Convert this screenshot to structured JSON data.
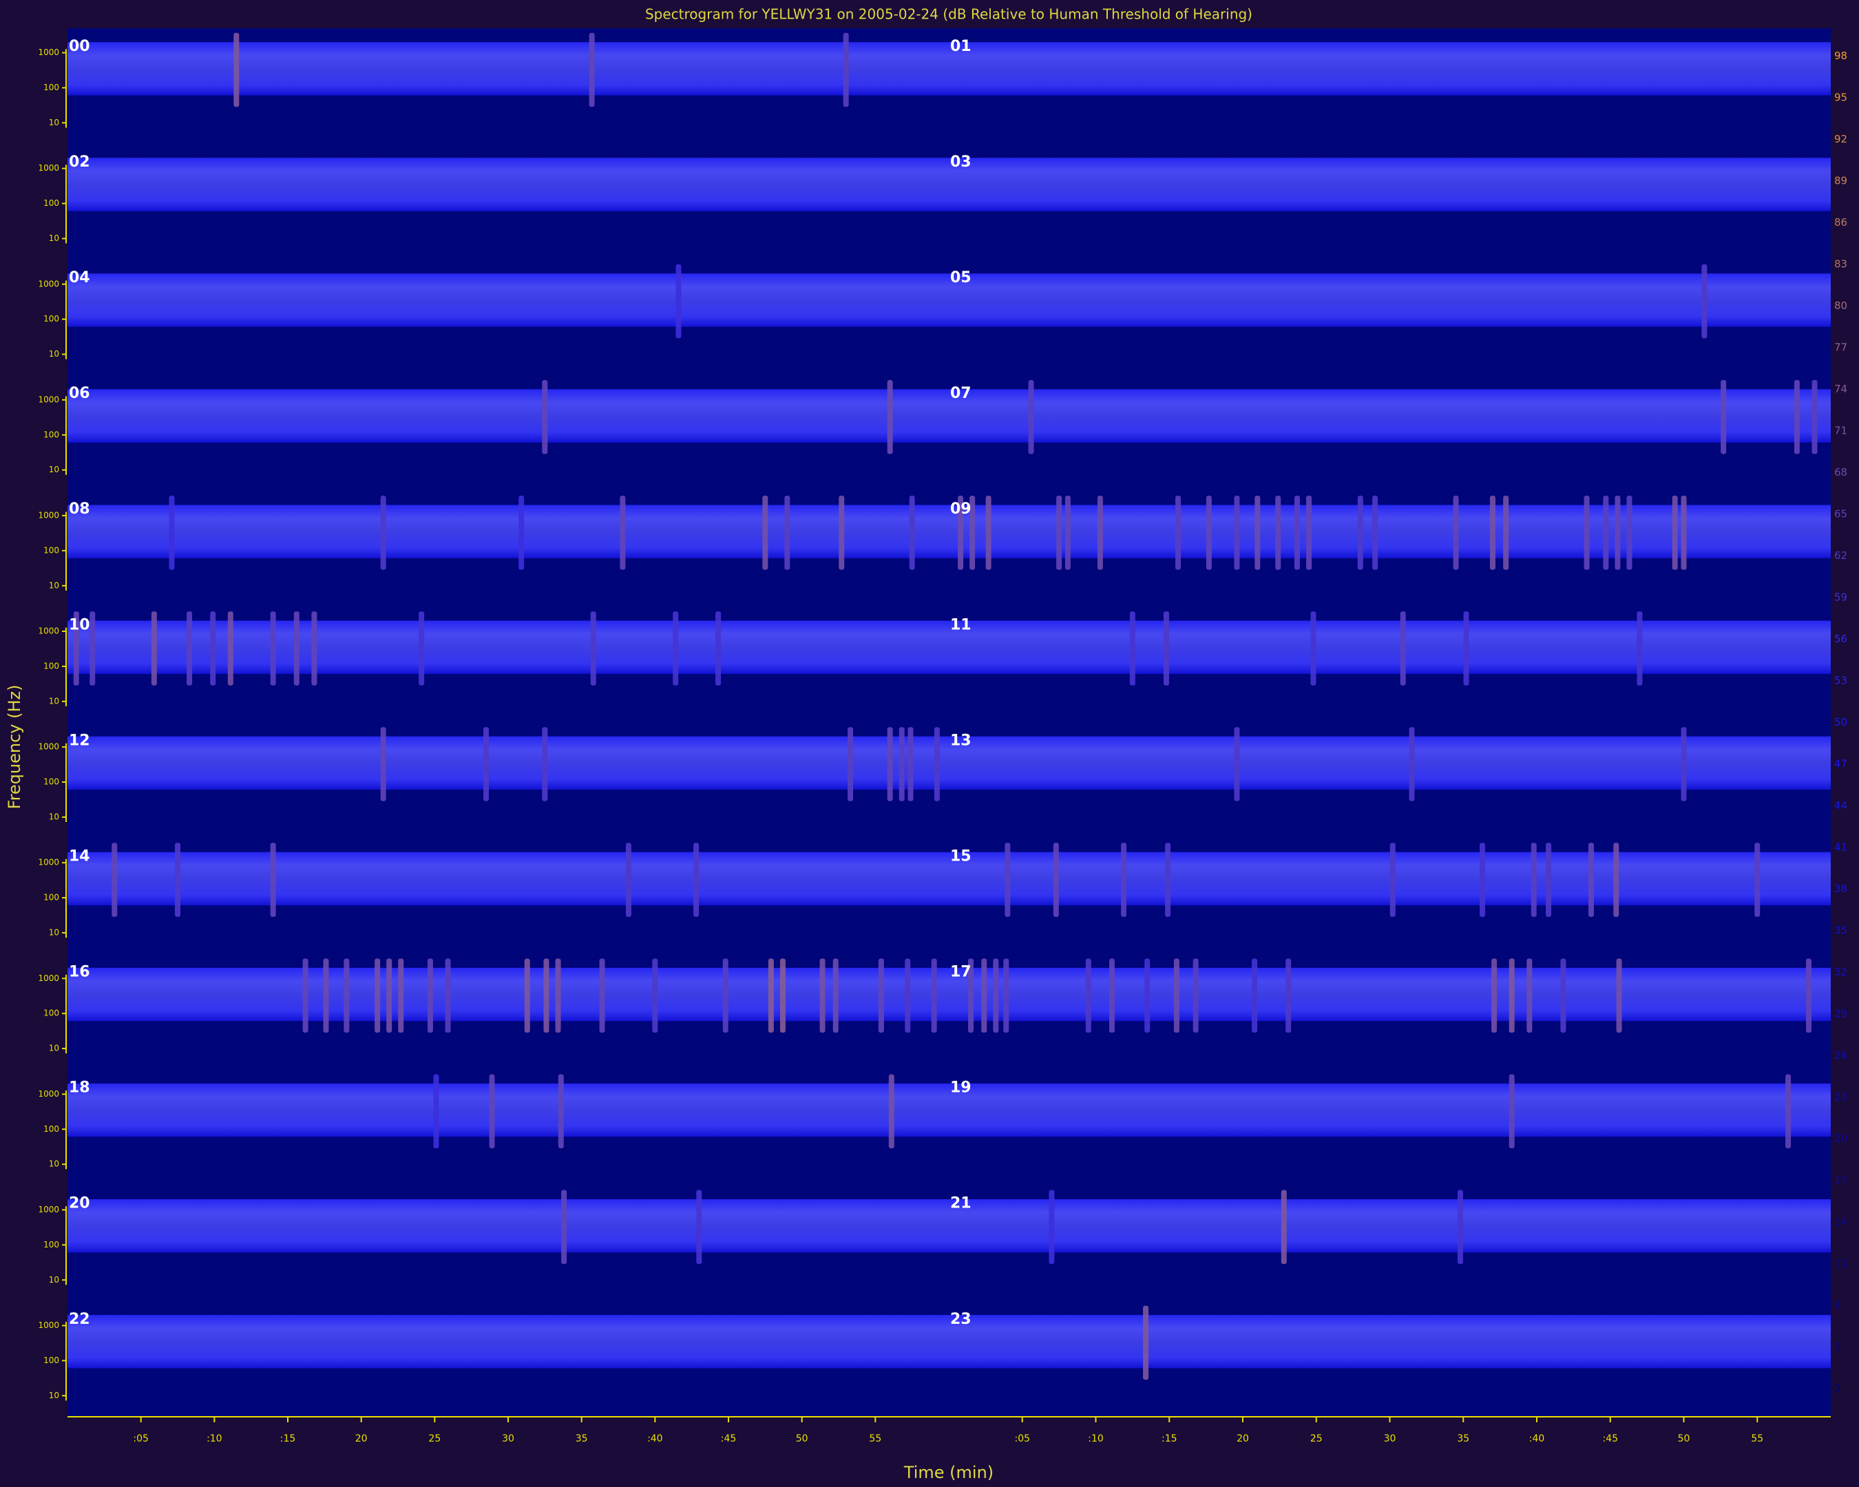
{
  "chart_data": {
    "type": "spectrogram",
    "title": "Spectrogram for YELLWY31 on 2005-02-24 (dB Relative to Human Threshold of Hearing)",
    "x_label": "Time (min)",
    "y_label": "Frequency (Hz)",
    "xlim": [
      0,
      60
    ],
    "xticks": [
      {
        "value": 5,
        "label": ":05"
      },
      {
        "value": 10,
        "label": ":10"
      },
      {
        "value": 15,
        "label": ":15"
      },
      {
        "value": 20,
        "label": "20"
      },
      {
        "value": 25,
        "label": "25"
      },
      {
        "value": 30,
        "label": "30"
      },
      {
        "value": 35,
        "label": "35"
      },
      {
        "value": 40,
        "label": ":40"
      },
      {
        "value": 45,
        "label": ":45"
      },
      {
        "value": 50,
        "label": "50"
      },
      {
        "value": 55,
        "label": "55"
      }
    ],
    "ylim": [
      2.5,
      5000
    ],
    "yscale": "log",
    "yticks": [
      1000,
      100,
      10
    ],
    "clim": [
      0,
      100
    ],
    "colormap": [
      "#00007a",
      "#1818ff",
      "#ffa520"
    ],
    "colorbar_ticks": [
      98,
      95,
      92,
      89,
      86,
      83,
      80,
      77,
      74,
      71,
      68,
      65,
      62,
      59,
      56,
      53,
      50,
      47,
      44,
      41,
      38,
      35,
      32,
      29,
      26,
      23,
      20,
      17,
      14,
      11,
      8,
      5,
      2
    ],
    "panels": [
      {
        "label": "00",
        "x": [
          11.5,
          35.7,
          53
        ],
        "values": [
          72,
          66,
          64
        ]
      },
      {
        "label": "01",
        "x": [],
        "values": []
      },
      {
        "label": "02",
        "x": [],
        "values": []
      },
      {
        "label": "03",
        "x": [],
        "values": []
      },
      {
        "label": "04",
        "x": [
          41.6
        ],
        "values": [
          58
        ]
      },
      {
        "label": "05",
        "x": [
          51.4
        ],
        "values": [
          62
        ]
      },
      {
        "label": "06",
        "x": [
          32.5,
          56
        ],
        "values": [
          66,
          68
        ]
      },
      {
        "label": "07",
        "x": [
          5.6,
          52.7,
          57.7,
          58.9
        ],
        "values": [
          64,
          66,
          66,
          64
        ]
      },
      {
        "label": "08",
        "x": [
          7.1,
          21.5,
          30.9,
          37.8,
          47.5,
          49,
          52.7,
          57.5
        ],
        "values": [
          58,
          62,
          58,
          66,
          70,
          64,
          70,
          62
        ]
      },
      {
        "label": "09",
        "x": [
          0.8,
          1.6,
          2.7,
          7.5,
          8.1,
          10.3,
          15.6,
          17.7,
          19.6,
          21,
          22.4,
          23.7,
          24.5,
          28,
          29,
          34.5,
          37,
          37.9,
          43.4,
          44.7,
          45.5,
          46.3,
          49.4,
          50
        ],
        "values": [
          68,
          68,
          70,
          66,
          66,
          68,
          64,
          66,
          64,
          68,
          66,
          64,
          66,
          62,
          62,
          66,
          70,
          70,
          66,
          64,
          66,
          64,
          70,
          70
        ]
      },
      {
        "label": "10",
        "x": [
          0.6,
          1.7,
          5.9,
          8.3,
          9.9,
          11.1,
          14,
          15.6,
          16.8,
          24.1,
          35.8,
          41.4,
          44.3
        ],
        "values": [
          66,
          64,
          70,
          64,
          62,
          70,
          64,
          66,
          66,
          60,
          62,
          60,
          60
        ]
      },
      {
        "label": "11",
        "x": [
          12.5,
          14.8,
          24.8,
          30.9,
          35.2,
          47
        ],
        "values": [
          60,
          62,
          60,
          64,
          60,
          60
        ]
      },
      {
        "label": "12",
        "x": [
          21.5,
          28.5,
          32.5,
          53.3,
          56,
          56.8,
          57.4,
          59.2
        ],
        "values": [
          66,
          62,
          62,
          64,
          66,
          64,
          64,
          62
        ]
      },
      {
        "label": "13",
        "x": [
          19.6,
          31.5,
          50
        ],
        "values": [
          62,
          62,
          62
        ]
      },
      {
        "label": "14",
        "x": [
          3.2,
          7.5,
          14,
          38.2,
          42.8
        ],
        "values": [
          66,
          62,
          66,
          62,
          62
        ]
      },
      {
        "label": "15",
        "x": [
          4,
          7.3,
          11.9,
          14.9,
          30.2,
          36.3,
          39.8,
          40.8,
          43.7,
          45.4,
          55
        ],
        "values": [
          64,
          66,
          64,
          62,
          62,
          60,
          64,
          62,
          66,
          70,
          64
        ]
      },
      {
        "label": "16",
        "x": [
          16.2,
          17.6,
          19,
          21.1,
          21.9,
          22.7,
          24.7,
          25.9,
          31.3,
          32.6,
          33.4,
          36.4,
          40,
          44.8,
          47.9,
          48.7,
          51.4,
          52.3,
          55.4,
          57.2,
          59
        ],
        "values": [
          66,
          68,
          66,
          70,
          70,
          70,
          66,
          64,
          72,
          72,
          70,
          66,
          62,
          64,
          74,
          74,
          70,
          68,
          66,
          62,
          64
        ]
      },
      {
        "label": "17",
        "x": [
          1.5,
          2.4,
          3.2,
          3.9,
          9.5,
          11.1,
          13.5,
          15.5,
          16.8,
          20.8,
          23.1,
          37.1,
          38.3,
          39.5,
          41.8,
          45.6,
          58.5
        ],
        "values": [
          66,
          68,
          66,
          64,
          62,
          66,
          60,
          68,
          64,
          60,
          62,
          70,
          72,
          68,
          62,
          70,
          66
        ]
      },
      {
        "label": "18",
        "x": [
          25.1,
          28.9,
          33.6,
          56.1
        ],
        "values": [
          58,
          66,
          66,
          70
        ]
      },
      {
        "label": "19",
        "x": [
          38.3,
          57.1
        ],
        "values": [
          66,
          66
        ]
      },
      {
        "label": "20",
        "x": [
          33.8,
          43
        ],
        "values": [
          66,
          60
        ]
      },
      {
        "label": "21",
        "x": [
          7,
          22.8,
          34.8
        ],
        "values": [
          58,
          72,
          60
        ]
      },
      {
        "label": "22",
        "x": [],
        "values": []
      },
      {
        "label": "23",
        "x": [
          13.4
        ],
        "values": [
          72
        ]
      }
    ]
  }
}
